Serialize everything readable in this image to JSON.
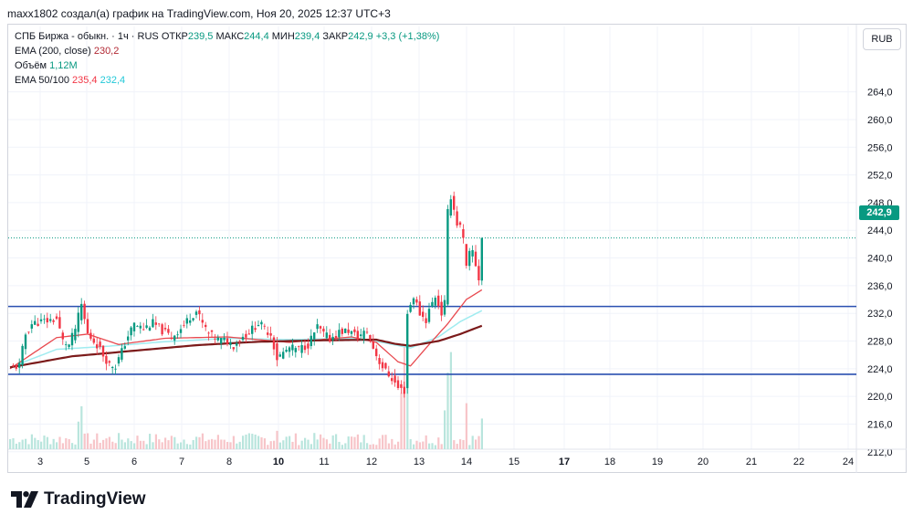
{
  "header": {
    "caption": "maxx1802 создал(а) график на TradingView.com, Ноя 20, 2025 12:37 UTC+3"
  },
  "legend": {
    "symbol": "СПБ Биржа - обыкн. · 1ч · RUS",
    "open_label": "ОТКР",
    "open_value": "239,5",
    "high_label": "МАКС",
    "high_value": "244,4",
    "low_label": "МИН",
    "low_value": "239,4",
    "close_label": "ЗАКР",
    "close_value": "242,9",
    "change": "+3,3 (+1,38%)",
    "ema200_label": "EMA (200, close)",
    "ema200_value": "230,2",
    "volume_label": "Объём",
    "volume_value": "1,12M",
    "ema50_100_label": "EMA 50/100",
    "ema50_value": "235,4",
    "ema100_value": "232,4"
  },
  "currency": "RUB",
  "last_price_tag": "242,9",
  "footer": {
    "brand": "TradingView"
  },
  "colors": {
    "up": "#089981",
    "down": "#f23645",
    "ema200": "#7b1a1a",
    "ema50": "#e8494f",
    "ema100": "#a0ecf0",
    "level": "#2a4fb0"
  },
  "chart_data": {
    "type": "candlestick",
    "ylim": [
      208.0,
      268.0
    ],
    "y_ticks": [
      "212,0",
      "216,0",
      "220,0",
      "224,0",
      "228,0",
      "232,0",
      "236,0",
      "240,0",
      "244,0",
      "248,0",
      "252,0",
      "256,0",
      "260,0",
      "264,0"
    ],
    "x_ticks": [
      "3",
      "5",
      "6",
      "7",
      "8",
      "10",
      "11",
      "12",
      "13",
      "14",
      "15",
      "17",
      "18",
      "19",
      "20",
      "21",
      "22",
      "24"
    ],
    "horizontal_levels": [
      233.0,
      223.2
    ],
    "last_price": 242.9,
    "close_path": [
      [
        0,
        224.0
      ],
      [
        3,
        224.5
      ],
      [
        5,
        229.0
      ],
      [
        7,
        230.5
      ],
      [
        10,
        230.8
      ],
      [
        13,
        231.0
      ],
      [
        15,
        231.2
      ],
      [
        17,
        228.0
      ],
      [
        19,
        227.4
      ],
      [
        21,
        229.8
      ],
      [
        23,
        233.2
      ],
      [
        25,
        229.0
      ],
      [
        28,
        227.5
      ],
      [
        30,
        226.0
      ],
      [
        32,
        224.6
      ],
      [
        34,
        224.4
      ],
      [
        36,
        226.5
      ],
      [
        38,
        228.8
      ],
      [
        40,
        230.4
      ],
      [
        43,
        229.8
      ],
      [
        46,
        230.6
      ],
      [
        49,
        229.5
      ],
      [
        52,
        228.6
      ],
      [
        55,
        229.8
      ],
      [
        58,
        231.5
      ],
      [
        60,
        232.3
      ],
      [
        62,
        230.5
      ],
      [
        64,
        229.0
      ],
      [
        67,
        228.2
      ],
      [
        70,
        228.0
      ],
      [
        72,
        227.4
      ],
      [
        74,
        228.3
      ],
      [
        77,
        229.3
      ],
      [
        80,
        230.6
      ],
      [
        82,
        229.8
      ],
      [
        84,
        229.0
      ],
      [
        86,
        225.5
      ],
      [
        88,
        226.3
      ],
      [
        90,
        227.0
      ],
      [
        93,
        226.8
      ],
      [
        96,
        227.5
      ],
      [
        99,
        230.0
      ],
      [
        101,
        229.0
      ],
      [
        103,
        228.3
      ],
      [
        106,
        229.3
      ],
      [
        109,
        229.5
      ],
      [
        112,
        228.6
      ],
      [
        115,
        229.4
      ],
      [
        117,
        227.0
      ],
      [
        119,
        225.0
      ],
      [
        121,
        223.6
      ],
      [
        123,
        222.6
      ],
      [
        125,
        221.2
      ],
      [
        127,
        220.8
      ],
      [
        128,
        232.0
      ],
      [
        130,
        234.5
      ],
      [
        132,
        232.0
      ],
      [
        134,
        231.0
      ],
      [
        135,
        232.5
      ],
      [
        137,
        234.5
      ],
      [
        139,
        232.0
      ],
      [
        140,
        233.5
      ],
      [
        141,
        246.5
      ],
      [
        142,
        249.0
      ],
      [
        143,
        247.0
      ],
      [
        144,
        245.0
      ],
      [
        145,
        244.5
      ],
      [
        146,
        242.5
      ],
      [
        147,
        238.5
      ],
      [
        148,
        240.5
      ],
      [
        149,
        241.0
      ],
      [
        150,
        239.0
      ],
      [
        151,
        237.0
      ],
      [
        152,
        242.9
      ]
    ],
    "ema50": [
      [
        0,
        224.0
      ],
      [
        15,
        228.5
      ],
      [
        25,
        229.0
      ],
      [
        35,
        227.5
      ],
      [
        50,
        228.4
      ],
      [
        70,
        228.6
      ],
      [
        90,
        227.8
      ],
      [
        110,
        228.6
      ],
      [
        118,
        227.8
      ],
      [
        125,
        225.0
      ],
      [
        129,
        224.4
      ],
      [
        135,
        227.5
      ],
      [
        141,
        230.5
      ],
      [
        147,
        234.0
      ],
      [
        152,
        235.4
      ]
    ],
    "ema100": [
      [
        0,
        224.2
      ],
      [
        15,
        226.8
      ],
      [
        30,
        227.2
      ],
      [
        50,
        227.9
      ],
      [
        70,
        228.4
      ],
      [
        90,
        228.2
      ],
      [
        110,
        228.4
      ],
      [
        120,
        227.8
      ],
      [
        129,
        227.0
      ],
      [
        138,
        228.6
      ],
      [
        145,
        230.8
      ],
      [
        152,
        232.4
      ]
    ],
    "ema200": [
      [
        0,
        224.2
      ],
      [
        20,
        225.8
      ],
      [
        40,
        226.6
      ],
      [
        60,
        227.4
      ],
      [
        80,
        227.9
      ],
      [
        100,
        228.1
      ],
      [
        118,
        228.2
      ],
      [
        124,
        227.6
      ],
      [
        129,
        227.3
      ],
      [
        138,
        228.0
      ],
      [
        145,
        229.0
      ],
      [
        152,
        230.2
      ]
    ],
    "volume_spikes": [
      [
        22,
        0.27
      ],
      [
        23,
        0.42
      ],
      [
        86,
        0.18
      ],
      [
        126,
        0.55
      ],
      [
        127,
        1.0
      ],
      [
        128,
        0.85
      ],
      [
        140,
        0.38
      ],
      [
        141,
        0.75
      ],
      [
        142,
        0.95
      ],
      [
        147,
        0.45
      ],
      [
        152,
        0.3
      ]
    ]
  }
}
